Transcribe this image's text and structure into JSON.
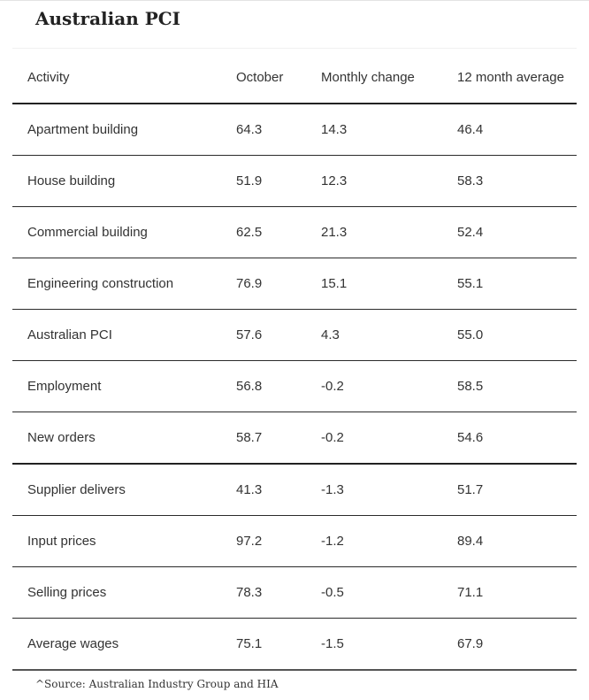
{
  "page": {
    "title": "Australian PCI",
    "source_note": "^Source: Australian Industry Group and HIA"
  },
  "table": {
    "columns": [
      "Activity",
      "October",
      "Monthly change",
      "12 month average"
    ],
    "rows": [
      {
        "activity": "Apartment building",
        "october": "64.3",
        "monthly_change": "14.3",
        "avg_12m": "46.4"
      },
      {
        "activity": "House building",
        "october": "51.9",
        "monthly_change": "12.3",
        "avg_12m": "58.3"
      },
      {
        "activity": "Commercial building",
        "october": "62.5",
        "monthly_change": "21.3",
        "avg_12m": "52.4"
      },
      {
        "activity": "Engineering construction",
        "october": "76.9",
        "monthly_change": "15.1",
        "avg_12m": "55.1"
      },
      {
        "activity": "Australian PCI",
        "october": "57.6",
        "monthly_change": "4.3",
        "avg_12m": "55.0"
      },
      {
        "activity": "Employment",
        "october": "56.8",
        "monthly_change": "-0.2",
        "avg_12m": "58.5"
      },
      {
        "activity": "New orders",
        "october": "58.7",
        "monthly_change": "-0.2",
        "avg_12m": "54.6"
      },
      {
        "activity": "Supplier delivers",
        "october": "41.3",
        "monthly_change": "-1.3",
        "avg_12m": "51.7"
      },
      {
        "activity": "Input prices",
        "october": "97.2",
        "monthly_change": "-1.2",
        "avg_12m": "89.4"
      },
      {
        "activity": "Selling prices",
        "october": "78.3",
        "monthly_change": "-0.5",
        "avg_12m": "71.1"
      },
      {
        "activity": "Average wages",
        "october": "75.1",
        "monthly_change": "-1.5",
        "avg_12m": "67.9"
      }
    ]
  }
}
